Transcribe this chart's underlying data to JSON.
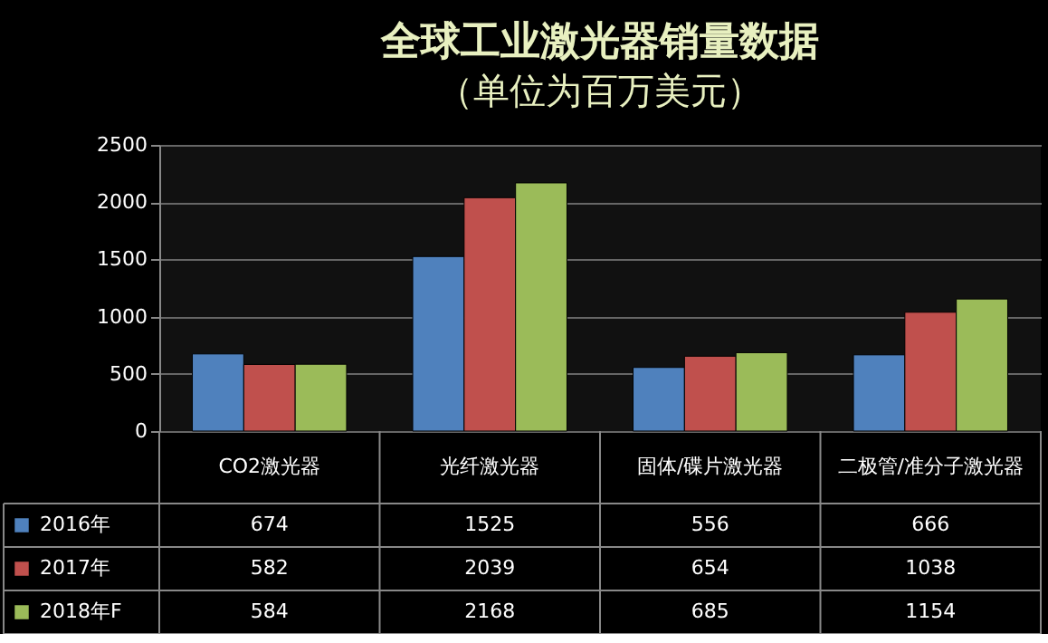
{
  "chart_data": {
    "type": "bar",
    "title": "全球工业激光器销量数据",
    "subtitle": "（单位为百万美元）",
    "categories": [
      "CO2激光器",
      "光纤激光器",
      "固体/碟片激光器",
      "二极管/准分子激光器"
    ],
    "series": [
      {
        "name": "2016年",
        "color": "#4f81bd",
        "values": [
          674,
          1525,
          556,
          666
        ]
      },
      {
        "name": "2017年",
        "color": "#c0504d",
        "values": [
          582,
          2039,
          654,
          1038
        ]
      },
      {
        "name": "2018年F",
        "color": "#9bbb59",
        "values": [
          584,
          2168,
          685,
          1154
        ]
      }
    ],
    "ylim": [
      0,
      2500
    ],
    "yticks": [
      0,
      500,
      1000,
      1500,
      2000,
      2500
    ],
    "grid": "y",
    "legend": "bottom left",
    "data_labels": true
  }
}
